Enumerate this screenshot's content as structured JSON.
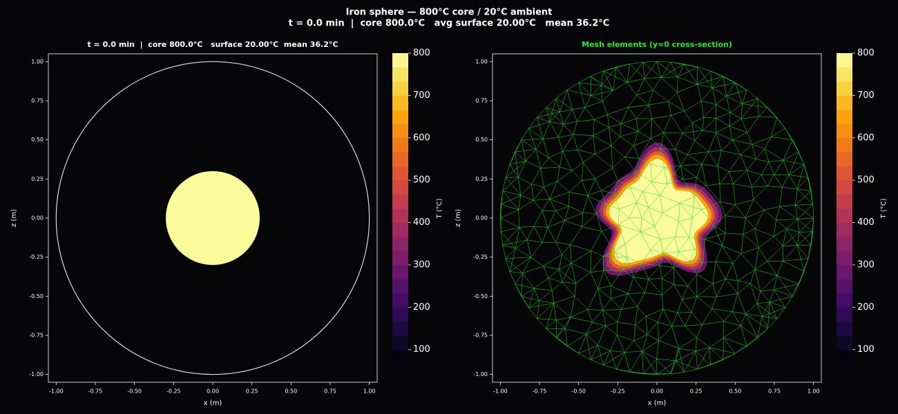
{
  "title": "Iron sphere — 800°C core / 20°C ambient",
  "subtitle": "t = 0.0 min  |  core 800.0°C   avg surface 20.00°C   mean 36.2°C",
  "chart_data": [
    {
      "type": "contour",
      "title": "t = 0.0 min  |  core 800.0°C   surface 20.00°C  mean 36.2°C",
      "title_color": "#ffffff",
      "xlabel": "x (m)",
      "ylabel": "z (m)",
      "xlim": [
        -1.05,
        1.05
      ],
      "ylim": [
        -1.05,
        1.05
      ],
      "xticks": [
        {
          "value": -1,
          "label": "-1.00"
        },
        {
          "value": -0.75,
          "label": "-0.75"
        },
        {
          "value": -0.5,
          "label": "-0.50"
        },
        {
          "value": -0.25,
          "label": "-0.25"
        },
        {
          "value": 0,
          "label": "0.00"
        },
        {
          "value": 0.25,
          "label": "0.25"
        },
        {
          "value": 0.5,
          "label": "0.50"
        },
        {
          "value": 0.75,
          "label": "0.75"
        },
        {
          "value": 1,
          "label": "1.00"
        }
      ],
      "yticks": [
        {
          "value": -1,
          "label": "-1.00"
        },
        {
          "value": -0.75,
          "label": "-0.75"
        },
        {
          "value": -0.5,
          "label": "-0.50"
        },
        {
          "value": -0.25,
          "label": "-0.25"
        },
        {
          "value": 0,
          "label": "0.00"
        },
        {
          "value": 0.25,
          "label": "0.25"
        },
        {
          "value": 0.5,
          "label": "0.50"
        },
        {
          "value": 0.75,
          "label": "0.75"
        },
        {
          "value": 1,
          "label": "1.00"
        }
      ],
      "core_radius": 0.3,
      "outer_radius": 1.0,
      "colorbar": {
        "label": "T (°C)",
        "colormap": "inferno",
        "lim": [
          67,
          800
        ],
        "ticks": [
          100,
          200,
          300,
          400,
          500,
          600,
          700,
          800
        ]
      }
    },
    {
      "type": "mesh",
      "title": "Mesh elements (y≈0 cross-section)",
      "title_color": "#22ee22",
      "xlabel": "x (m)",
      "ylabel": "z (m)",
      "xlim": [
        -1.05,
        1.05
      ],
      "ylim": [
        -1.05,
        1.05
      ],
      "xticks": [
        {
          "value": -1,
          "label": "-1.00"
        },
        {
          "value": -0.75,
          "label": "-0.75"
        },
        {
          "value": -0.5,
          "label": "-0.50"
        },
        {
          "value": -0.25,
          "label": "-0.25"
        },
        {
          "value": 0,
          "label": "0.00"
        },
        {
          "value": 0.25,
          "label": "0.25"
        },
        {
          "value": 0.5,
          "label": "0.50"
        },
        {
          "value": 0.75,
          "label": "0.75"
        },
        {
          "value": 1,
          "label": "1.00"
        }
      ],
      "yticks": [
        {
          "value": -1,
          "label": "-1.00"
        },
        {
          "value": -0.75,
          "label": "-0.75"
        },
        {
          "value": -0.5,
          "label": "-0.50"
        },
        {
          "value": -0.25,
          "label": "-0.25"
        },
        {
          "value": 0,
          "label": "0.00"
        },
        {
          "value": 0.25,
          "label": "0.25"
        },
        {
          "value": 0.5,
          "label": "0.50"
        },
        {
          "value": 0.75,
          "label": "0.75"
        },
        {
          "value": 1,
          "label": "1.00"
        }
      ],
      "mesh_color": "#22dd22",
      "colorbar": {
        "label": "T (°C)",
        "colormap": "inferno",
        "lim": [
          67,
          800
        ],
        "ticks": [
          100,
          200,
          300,
          400,
          500,
          600,
          700,
          800
        ]
      }
    }
  ]
}
